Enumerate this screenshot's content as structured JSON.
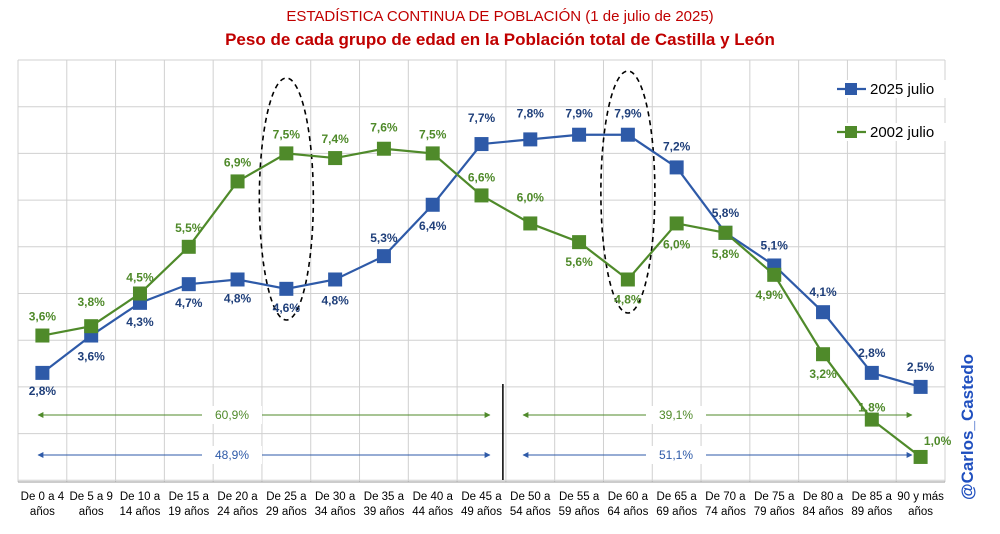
{
  "title": "ESTADÍSTICA CONTINUA DE POBLACIÓN (1 de julio de 2025)",
  "subtitle": "Peso de cada grupo de edad en la Población total de Castilla y León",
  "watermark": "@Carlos_Castedo",
  "colors": {
    "s2025": "#2e5aa8",
    "s2002": "#4f8a2a",
    "label2025": "#1f3f7a",
    "label2002": "#4f8a2a",
    "title": "#c00000",
    "grid": "#d0d0d0"
  },
  "chart_data": {
    "type": "line",
    "title": "Peso de cada grupo de edad en la Población total de Castilla y León",
    "xlabel": "",
    "ylabel": "",
    "ylim": [
      0.5,
      9.5
    ],
    "grid": true,
    "legend_position": "top-right",
    "categories": [
      "De 0 a 4|años",
      "De 5 a 9|años",
      "De 10 a|14 años",
      "De 15 a|19 años",
      "De 20 a|24 años",
      "De 25 a|29 años",
      "De 30 a|34 años",
      "De 35 a|39 años",
      "De 40 a|44 años",
      "De 45 a|49 años",
      "De 50 a|54 años",
      "De 55 a|59 años",
      "De 60 a|64 años",
      "De 65 a|69 años",
      "De 70 a|74 años",
      "De 75 a|79 años",
      "De 80 a|84 años",
      "De 85 a|89 años",
      "90 y más|años"
    ],
    "series": [
      {
        "name": "2025 julio",
        "key": "s2025",
        "values": [
          2.8,
          3.6,
          4.3,
          4.7,
          4.8,
          4.6,
          4.8,
          5.3,
          6.4,
          7.7,
          7.8,
          7.9,
          7.9,
          7.2,
          5.8,
          5.1,
          4.1,
          2.8,
          2.5
        ],
        "labels": [
          "2,8%",
          "3,6%",
          "4,3%",
          "4,7%",
          "4,8%",
          "4,6%",
          "4,8%",
          "5,3%",
          "6,4%",
          "7,7%",
          "7,8%",
          "7,9%",
          "7,9%",
          "7,2%",
          "5,8%",
          "5,1%",
          "4,1%",
          "2,8%",
          "2,5%"
        ]
      },
      {
        "name": "2002 julio",
        "key": "s2002",
        "values": [
          3.6,
          3.8,
          4.5,
          5.5,
          6.9,
          7.5,
          7.4,
          7.6,
          7.5,
          6.6,
          6.0,
          5.6,
          4.8,
          6.0,
          5.8,
          4.9,
          3.2,
          1.8,
          1.0
        ],
        "labels": [
          "3,6%",
          "3,8%",
          "4,5%",
          "5,5%",
          "6,9%",
          "7,5%",
          "7,4%",
          "7,6%",
          "7,5%",
          "6,6%",
          "6,0%",
          "5,6%",
          "4,8%",
          "6,0%",
          "5,8%",
          "4,9%",
          "3,2%",
          "1,8%",
          "1,0%"
        ]
      }
    ],
    "annotations": {
      "sum_2002_under50": "60,9%",
      "sum_2002_over50": "39,1%",
      "sum_2025_under50": "48,9%",
      "sum_2025_over50": "51,1%"
    }
  }
}
